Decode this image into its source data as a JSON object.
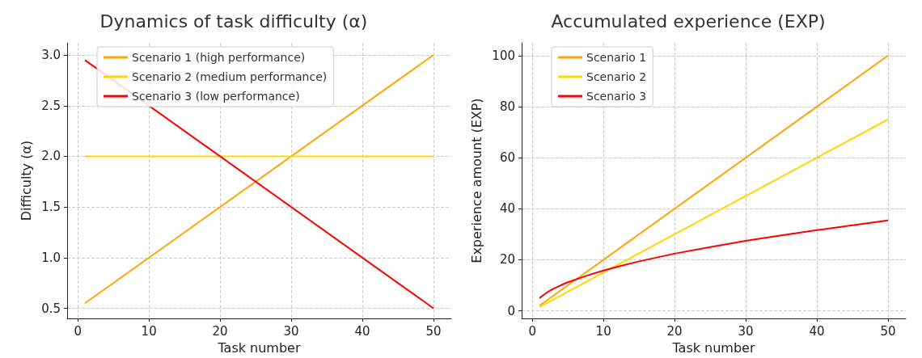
{
  "chart_data": [
    {
      "type": "line",
      "title": "Dynamics of task difficulty (α)",
      "xlabel": "Task number",
      "ylabel": "Difficulty (α)",
      "xlim": [
        -1.5,
        52.5
      ],
      "xticks": [
        0,
        10,
        20,
        30,
        40,
        50
      ],
      "ylim": [
        0.4,
        3.12
      ],
      "yticks": [
        {
          "value": 0.5,
          "label": "0.5"
        },
        {
          "value": 1,
          "label": "1.0"
        },
        {
          "value": 1.5,
          "label": "1.5"
        },
        {
          "value": 2,
          "label": "2.0"
        },
        {
          "value": 2.5,
          "label": "2.5"
        },
        {
          "value": 3,
          "label": "3.0"
        }
      ],
      "grid": true,
      "legend": "top left",
      "line_style": "solid",
      "marker": "none",
      "series": [
        {
          "name": "Scenario 1 (high performance)",
          "color": "#ffa500",
          "x": [
            1,
            50
          ],
          "values": [
            0.55,
            3.0
          ]
        },
        {
          "name": "Scenario 2 (medium performance)",
          "color": "#ffd700",
          "x": [
            1,
            50
          ],
          "values": [
            2.0,
            2.0
          ]
        },
        {
          "name": "Scenario 3 (low performance)",
          "color": "#ff0000",
          "x": [
            1,
            50
          ],
          "values": [
            2.95,
            0.5
          ]
        }
      ]
    },
    {
      "type": "line",
      "title": "Accumulated experience (EXP)",
      "xlabel": "Task number",
      "ylabel": "Experience amount (EXP)",
      "xlim": [
        -1.5,
        52.5
      ],
      "xticks": [
        0,
        10,
        20,
        30,
        40,
        50
      ],
      "ylim": [
        -3,
        105
      ],
      "yticks": [
        0,
        20,
        40,
        60,
        80,
        100
      ],
      "grid": true,
      "legend": "top left",
      "line_style": "solid",
      "marker": "none",
      "series": [
        {
          "name": "Scenario 1",
          "color": "#ffa500",
          "x": [
            1,
            50
          ],
          "values": [
            2,
            100
          ]
        },
        {
          "name": "Scenario 2",
          "color": "#ffd700",
          "x": [
            1,
            50
          ],
          "values": [
            1.5,
            75
          ]
        },
        {
          "name": "Scenario 3",
          "color": "#ff0000",
          "x": [
            1,
            2,
            3,
            4,
            5,
            6,
            8,
            10,
            12,
            15,
            20,
            25,
            30,
            35,
            40,
            45,
            50
          ],
          "values": [
            5,
            7.1,
            8.7,
            10,
            11.2,
            12.2,
            14.1,
            15.8,
            17.3,
            19.4,
            22.4,
            25,
            27.4,
            29.6,
            31.6,
            33.5,
            35.4
          ]
        }
      ]
    }
  ]
}
